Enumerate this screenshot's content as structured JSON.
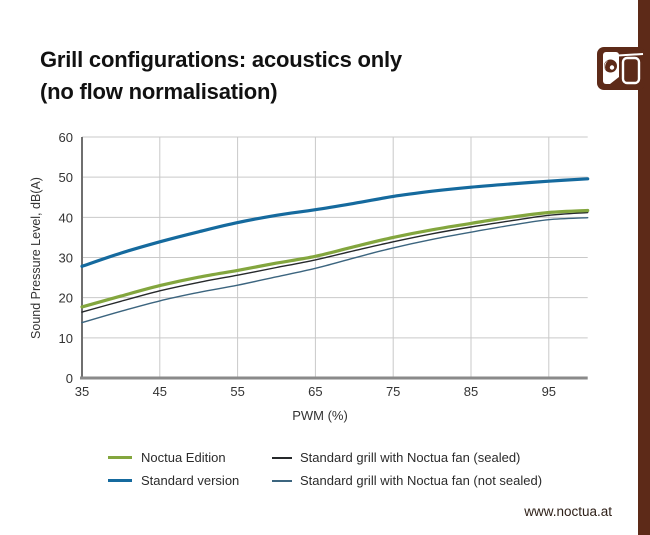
{
  "page": {
    "background": "#ffffff",
    "accent_brown": "#5d2a18"
  },
  "header": {
    "title_line1": "Grill configurations: acoustics only",
    "title_line2": "(no flow normalisation)",
    "logo_icon": "noctua-owl-fan-icon"
  },
  "footer": {
    "website": "www.noctua.at"
  },
  "chart_data": {
    "type": "line",
    "title": "Grill configurations: acoustics only (no flow normalisation)",
    "xlabel": "PWM (%)",
    "ylabel": "Sound Pressure Level, dB(A)",
    "xlim": [
      35,
      100
    ],
    "ylim": [
      0,
      60
    ],
    "x_ticks": [
      35,
      45,
      55,
      65,
      75,
      85,
      95
    ],
    "y_ticks": [
      0,
      10,
      20,
      30,
      40,
      50,
      60
    ],
    "grid": true,
    "legend_position": "bottom",
    "grid_color": "#c9c9c9",
    "axis_color": "#8a8a8a",
    "x": [
      35,
      40,
      45,
      50,
      55,
      60,
      65,
      70,
      75,
      80,
      85,
      90,
      95,
      100
    ],
    "series": [
      {
        "name": "Noctua Edition",
        "color": "#83a63e",
        "width": 3.2,
        "values": [
          17.7,
          20.4,
          23.0,
          25.1,
          26.8,
          28.6,
          30.3,
          32.7,
          35.0,
          36.9,
          38.5,
          40.0,
          41.2,
          41.7
        ]
      },
      {
        "name": "Standard version",
        "color": "#156a9e",
        "width": 3.2,
        "values": [
          27.8,
          31.1,
          33.9,
          36.4,
          38.7,
          40.5,
          41.9,
          43.5,
          45.2,
          46.5,
          47.5,
          48.3,
          49.0,
          49.6
        ]
      },
      {
        "name": "Standard grill with Noctua fan (sealed)",
        "color": "#26292b",
        "width": 1.4,
        "values": [
          16.4,
          19.1,
          21.7,
          23.8,
          25.6,
          27.5,
          29.4,
          31.7,
          33.9,
          35.9,
          37.6,
          39.1,
          40.5,
          41.2
        ]
      },
      {
        "name": "Standard grill with Noctua fan (not sealed)",
        "color": "#3c657f",
        "width": 1.4,
        "values": [
          13.8,
          16.6,
          19.2,
          21.3,
          23.1,
          25.2,
          27.3,
          29.9,
          32.4,
          34.5,
          36.3,
          38.0,
          39.4,
          39.9
        ]
      }
    ]
  }
}
